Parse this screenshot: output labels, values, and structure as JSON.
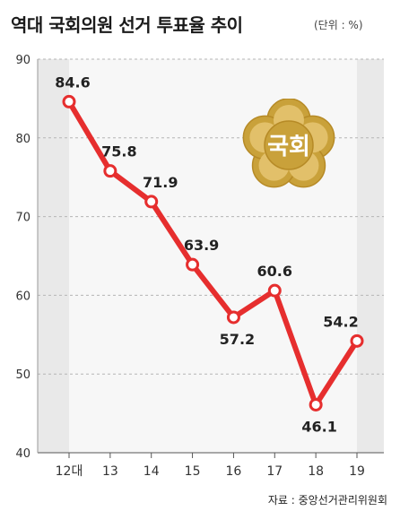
{
  "title": "역대 국회의원 선거 투표율 추이",
  "unit": "(단위 : %)",
  "source": "자료 : 중앙선거관리위원회",
  "emblem_text": "국회",
  "colors": {
    "line": "#e62e2e",
    "marker_fill": "#ffffff",
    "grid": "#b5b5b5",
    "plot_bg": "#e9e9e9",
    "band_bg": "#f7f7f7",
    "emblem_gold": "#c9a13a",
    "emblem_inner": "#e2c06a"
  },
  "chart_data": {
    "type": "line",
    "categories": [
      "12대",
      "13",
      "14",
      "15",
      "16",
      "17",
      "18",
      "19"
    ],
    "values": [
      84.6,
      75.8,
      71.9,
      63.9,
      57.2,
      60.6,
      46.1,
      54.2
    ],
    "data_labels": [
      "84.6",
      "75.8",
      "71.9",
      "63.9",
      "57.2",
      "60.6",
      "46.1",
      "54.2"
    ],
    "title": "역대 국회의원 선거 투표율 추이",
    "xlabel": "",
    "ylabel": "",
    "ylim": [
      40,
      90
    ],
    "yticks": [
      "40",
      "50",
      "60",
      "70",
      "80",
      "90"
    ],
    "grid": true,
    "legend": "none"
  }
}
